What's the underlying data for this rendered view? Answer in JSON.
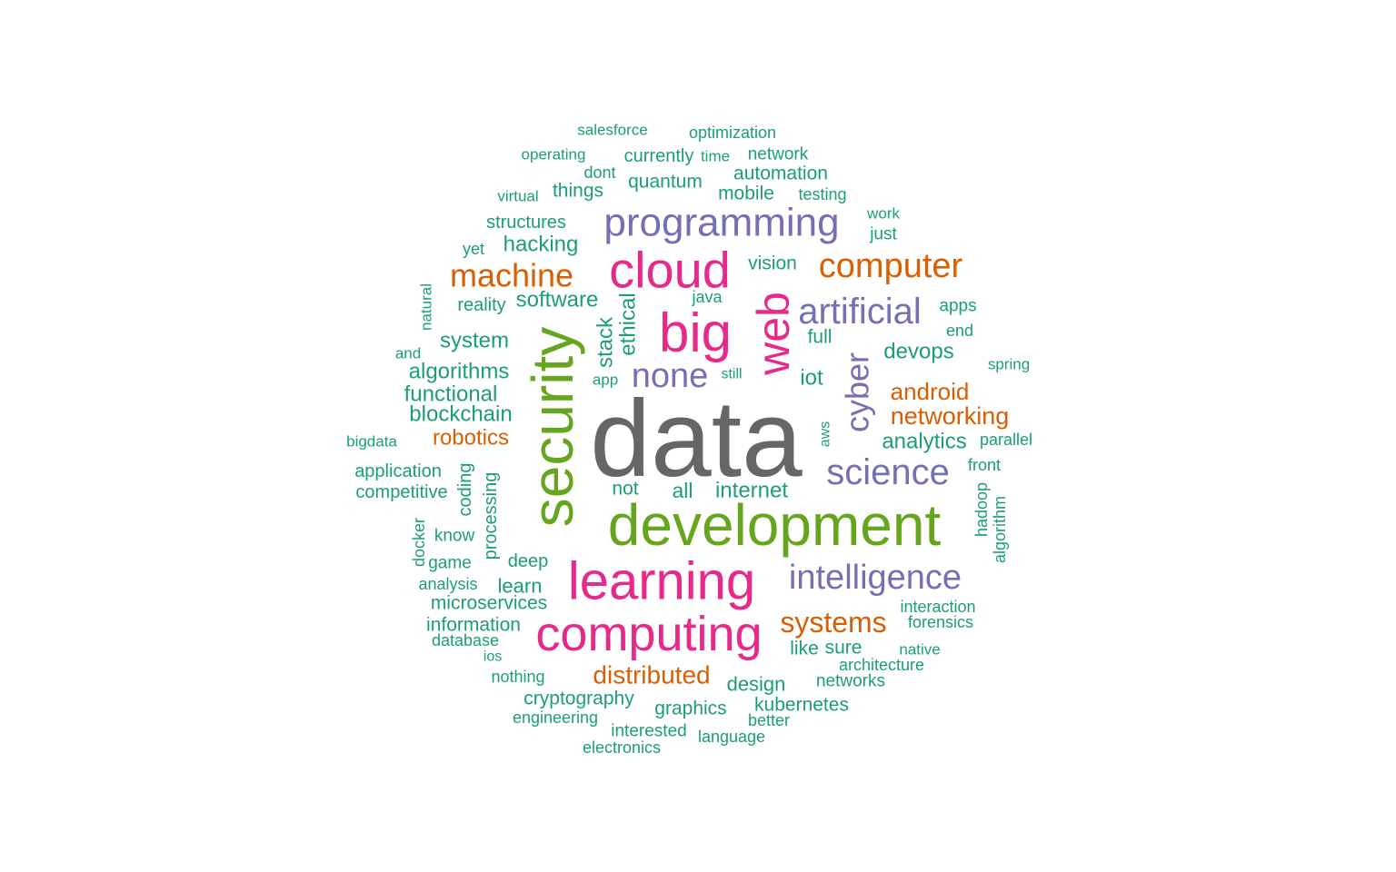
{
  "palette": {
    "gray": "#666666",
    "green": "#66a61e",
    "magenta": "#e7298a",
    "purple": "#7570b3",
    "orange": "#d95f02",
    "teal": "#1b9e77"
  },
  "words": [
    {
      "text": "data",
      "color": "gray"
    },
    {
      "text": "development",
      "color": "green"
    },
    {
      "text": "security",
      "color": "green"
    },
    {
      "text": "learning",
      "color": "magenta"
    },
    {
      "text": "computing",
      "color": "magenta"
    },
    {
      "text": "cloud",
      "color": "magenta"
    },
    {
      "text": "big",
      "color": "magenta"
    },
    {
      "text": "web",
      "color": "magenta"
    },
    {
      "text": "programming",
      "color": "purple"
    },
    {
      "text": "intelligence",
      "color": "purple"
    },
    {
      "text": "science",
      "color": "purple"
    },
    {
      "text": "artificial",
      "color": "purple"
    },
    {
      "text": "cyber",
      "color": "purple"
    },
    {
      "text": "none",
      "color": "purple"
    },
    {
      "text": "machine",
      "color": "orange"
    },
    {
      "text": "computer",
      "color": "orange"
    },
    {
      "text": "systems",
      "color": "orange"
    },
    {
      "text": "distributed",
      "color": "orange"
    },
    {
      "text": "networking",
      "color": "orange"
    },
    {
      "text": "android",
      "color": "orange"
    },
    {
      "text": "robotics",
      "color": "orange"
    },
    {
      "text": "salesforce",
      "color": "teal"
    },
    {
      "text": "optimization",
      "color": "teal"
    },
    {
      "text": "operating",
      "color": "teal"
    },
    {
      "text": "currently",
      "color": "teal"
    },
    {
      "text": "time",
      "color": "teal"
    },
    {
      "text": "network",
      "color": "teal"
    },
    {
      "text": "dont",
      "color": "teal"
    },
    {
      "text": "automation",
      "color": "teal"
    },
    {
      "text": "quantum",
      "color": "teal"
    },
    {
      "text": "virtual",
      "color": "teal"
    },
    {
      "text": "things",
      "color": "teal"
    },
    {
      "text": "mobile",
      "color": "teal"
    },
    {
      "text": "testing",
      "color": "teal"
    },
    {
      "text": "structures",
      "color": "teal"
    },
    {
      "text": "work",
      "color": "teal"
    },
    {
      "text": "just",
      "color": "teal"
    },
    {
      "text": "yet",
      "color": "teal"
    },
    {
      "text": "hacking",
      "color": "teal"
    },
    {
      "text": "vision",
      "color": "teal"
    },
    {
      "text": "natural",
      "color": "teal"
    },
    {
      "text": "software",
      "color": "teal"
    },
    {
      "text": "ethical",
      "color": "teal"
    },
    {
      "text": "java",
      "color": "teal"
    },
    {
      "text": "reality",
      "color": "teal"
    },
    {
      "text": "apps",
      "color": "teal"
    },
    {
      "text": "stack",
      "color": "teal"
    },
    {
      "text": "end",
      "color": "teal"
    },
    {
      "text": "full",
      "color": "teal"
    },
    {
      "text": "system",
      "color": "teal"
    },
    {
      "text": "and",
      "color": "teal"
    },
    {
      "text": "devops",
      "color": "teal"
    },
    {
      "text": "spring",
      "color": "teal"
    },
    {
      "text": "algorithms",
      "color": "teal"
    },
    {
      "text": "app",
      "color": "teal"
    },
    {
      "text": "still",
      "color": "teal"
    },
    {
      "text": "iot",
      "color": "teal"
    },
    {
      "text": "functional",
      "color": "teal"
    },
    {
      "text": "blockchain",
      "color": "teal"
    },
    {
      "text": "aws",
      "color": "teal"
    },
    {
      "text": "bigdata",
      "color": "teal"
    },
    {
      "text": "analytics",
      "color": "teal"
    },
    {
      "text": "parallel",
      "color": "teal"
    },
    {
      "text": "front",
      "color": "teal"
    },
    {
      "text": "application",
      "color": "teal"
    },
    {
      "text": "coding",
      "color": "teal"
    },
    {
      "text": "processing",
      "color": "teal"
    },
    {
      "text": "competitive",
      "color": "teal"
    },
    {
      "text": "not",
      "color": "teal"
    },
    {
      "text": "all",
      "color": "teal"
    },
    {
      "text": "internet",
      "color": "teal"
    },
    {
      "text": "hadoop",
      "color": "teal"
    },
    {
      "text": "algorithm",
      "color": "teal"
    },
    {
      "text": "docker",
      "color": "teal"
    },
    {
      "text": "know",
      "color": "teal"
    },
    {
      "text": "game",
      "color": "teal"
    },
    {
      "text": "deep",
      "color": "teal"
    },
    {
      "text": "analysis",
      "color": "teal"
    },
    {
      "text": "learn",
      "color": "teal"
    },
    {
      "text": "microservices",
      "color": "teal"
    },
    {
      "text": "interaction",
      "color": "teal"
    },
    {
      "text": "information",
      "color": "teal"
    },
    {
      "text": "forensics",
      "color": "teal"
    },
    {
      "text": "database",
      "color": "teal"
    },
    {
      "text": "like",
      "color": "teal"
    },
    {
      "text": "sure",
      "color": "teal"
    },
    {
      "text": "native",
      "color": "teal"
    },
    {
      "text": "ios",
      "color": "teal"
    },
    {
      "text": "architecture",
      "color": "teal"
    },
    {
      "text": "nothing",
      "color": "teal"
    },
    {
      "text": "design",
      "color": "teal"
    },
    {
      "text": "networks",
      "color": "teal"
    },
    {
      "text": "cryptography",
      "color": "teal"
    },
    {
      "text": "graphics",
      "color": "teal"
    },
    {
      "text": "kubernetes",
      "color": "teal"
    },
    {
      "text": "engineering",
      "color": "teal"
    },
    {
      "text": "better",
      "color": "teal"
    },
    {
      "text": "interested",
      "color": "teal"
    },
    {
      "text": "language",
      "color": "teal"
    },
    {
      "text": "electronics",
      "color": "teal"
    }
  ]
}
